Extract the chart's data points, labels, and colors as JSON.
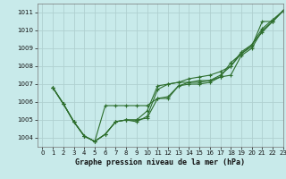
{
  "title": "Graphe pression niveau de la mer (hPa)",
  "bg_color": "#c8eaea",
  "grid_color": "#b0d0d0",
  "line_color": "#2d6e2d",
  "xlim": [
    -0.5,
    23
  ],
  "ylim": [
    1003.5,
    1011.5
  ],
  "yticks": [
    1004,
    1005,
    1006,
    1007,
    1008,
    1009,
    1010,
    1011
  ],
  "xticks": [
    0,
    1,
    2,
    3,
    4,
    5,
    6,
    7,
    8,
    9,
    10,
    11,
    12,
    13,
    14,
    15,
    16,
    17,
    18,
    19,
    20,
    21,
    22,
    23
  ],
  "series": [
    [
      1006.8,
      1005.9,
      1004.9,
      1004.1,
      1003.8,
      1004.2,
      1004.9,
      1005.0,
      1005.0,
      1005.1,
      1006.2,
      1006.3,
      1006.9,
      1007.0,
      1007.0,
      1007.1,
      1007.4,
      1007.5,
      1008.6,
      1009.0,
      1010.0,
      1010.5,
      1011.1
    ],
    [
      1006.8,
      1005.9,
      1004.9,
      1004.1,
      1003.8,
      1004.2,
      1004.9,
      1005.0,
      1004.9,
      1005.2,
      1006.7,
      1007.0,
      1007.1,
      1007.1,
      1007.2,
      1007.2,
      1007.5,
      1008.0,
      1008.7,
      1009.2,
      1009.9,
      1010.5,
      1011.1
    ],
    [
      1006.8,
      1005.9,
      1004.9,
      1004.1,
      1003.8,
      1005.8,
      1005.8,
      1005.8,
      1005.8,
      1005.8,
      1006.2,
      1006.2,
      1006.9,
      1007.1,
      1007.1,
      1007.2,
      1007.4,
      1008.2,
      1008.7,
      1009.1,
      1010.5,
      1010.5,
      1011.1
    ],
    [
      1006.8,
      1005.9,
      1004.9,
      1004.1,
      1003.8,
      1004.2,
      1004.9,
      1005.0,
      1005.0,
      1005.5,
      1006.9,
      1007.0,
      1007.1,
      1007.3,
      1007.4,
      1007.5,
      1007.7,
      1008.0,
      1008.8,
      1009.2,
      1010.1,
      1010.6,
      1011.1
    ]
  ],
  "xlabel_fontsize": 6,
  "tick_fontsize": 5,
  "linewidth": 0.8,
  "markersize": 3
}
